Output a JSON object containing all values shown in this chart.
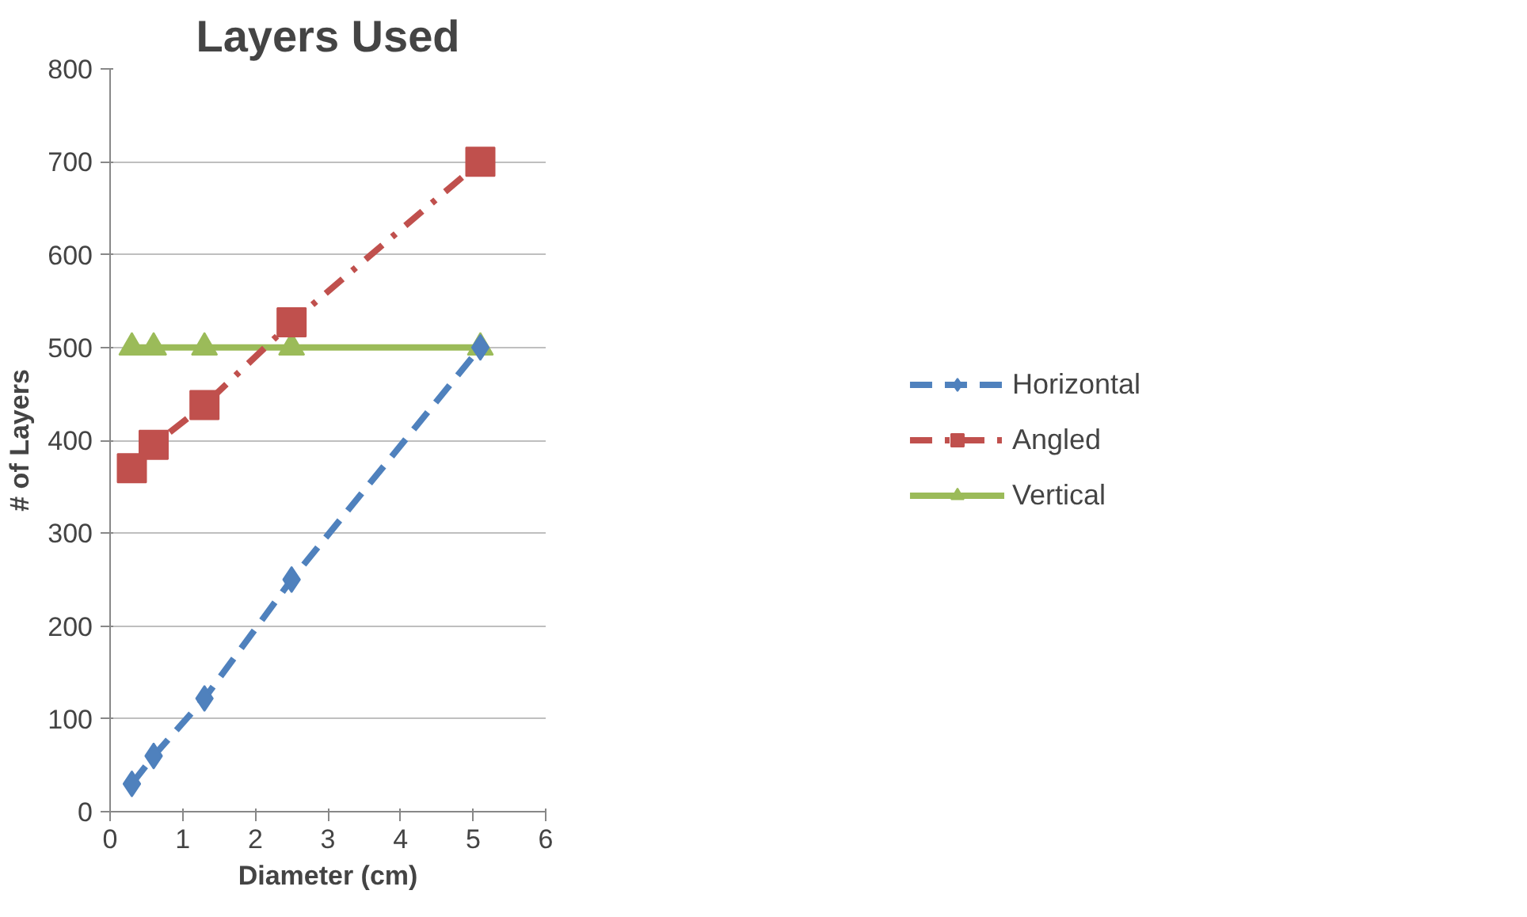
{
  "chart_data": {
    "type": "line",
    "title": "Layers Used",
    "xlabel": "Diameter (cm)",
    "ylabel": "# of Layers",
    "x": [
      0.3,
      0.6,
      1.3,
      2.5,
      5.1
    ],
    "series": [
      {
        "name": "Horizontal",
        "color": "#4f81bd",
        "values": [
          30,
          60,
          122,
          250,
          500
        ],
        "marker": "diamond",
        "line_style": "dashed"
      },
      {
        "name": "Angled",
        "color": "#c0504d",
        "values": [
          370,
          395,
          438,
          527,
          700
        ],
        "marker": "square",
        "line_style": "dashdot"
      },
      {
        "name": "Vertical",
        "color": "#9bbb59",
        "values": [
          500,
          500,
          500,
          500,
          500
        ],
        "marker": "triangle",
        "line_style": "solid"
      }
    ],
    "xlim": [
      0,
      6
    ],
    "xticks": [
      0,
      1,
      2,
      3,
      4,
      5,
      6
    ],
    "ylim": [
      0,
      800
    ],
    "yticks": [
      0,
      100,
      200,
      300,
      400,
      500,
      600,
      700,
      800
    ],
    "grid": "y",
    "legend": "right"
  }
}
